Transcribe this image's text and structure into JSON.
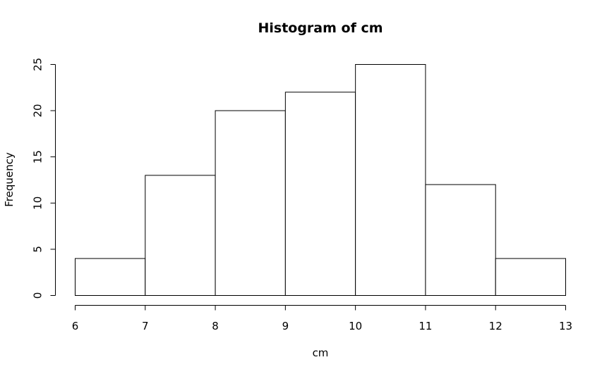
{
  "chart_data": {
    "type": "bar",
    "title": "Histogram of cm",
    "xlabel": "cm",
    "ylabel": "Frequency",
    "bins": [
      {
        "start": 6,
        "end": 7,
        "value": 4
      },
      {
        "start": 7,
        "end": 8,
        "value": 13
      },
      {
        "start": 8,
        "end": 9,
        "value": 20
      },
      {
        "start": 9,
        "end": 10,
        "value": 22
      },
      {
        "start": 10,
        "end": 11,
        "value": 25
      },
      {
        "start": 11,
        "end": 12,
        "value": 12
      },
      {
        "start": 12,
        "end": 13,
        "value": 4
      }
    ],
    "xlim": [
      6,
      13
    ],
    "ylim": [
      0,
      25
    ],
    "x_ticks": [
      "6",
      "7",
      "8",
      "9",
      "10",
      "11",
      "12",
      "13"
    ],
    "y_ticks": [
      "0",
      "5",
      "10",
      "15",
      "20",
      "25"
    ],
    "grid": false,
    "legend": "none"
  }
}
